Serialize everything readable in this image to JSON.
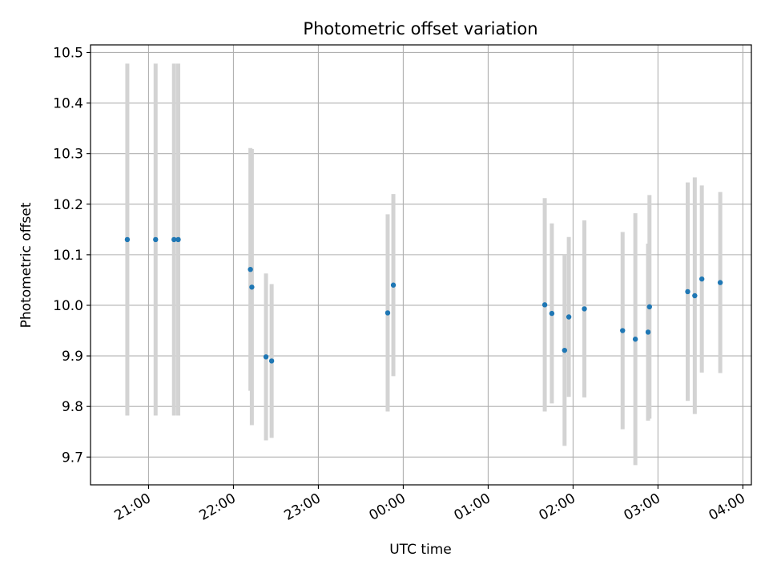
{
  "chart_data": {
    "type": "scatter",
    "title": "Photometric offset variation",
    "xlabel": "UTC time",
    "ylabel": "Photometric offset",
    "x_axis_kind": "time",
    "xlim": [
      "20:19",
      "04:06"
    ],
    "ylim": [
      9.645,
      10.515
    ],
    "y_ticks": [
      9.7,
      9.8,
      9.9,
      10.0,
      10.1,
      10.2,
      10.3,
      10.4,
      10.5
    ],
    "x_ticks": [
      "21:00",
      "22:00",
      "23:00",
      "00:00",
      "01:00",
      "02:00",
      "03:00",
      "04:00"
    ],
    "grid": true,
    "legend": "none",
    "colors": {
      "point": "#1f77b4",
      "errorbar": "#d3d3d3",
      "grid": "#b0b0b0"
    },
    "points": [
      {
        "x": "20:45",
        "y": 10.13,
        "err": 0.348
      },
      {
        "x": "21:05",
        "y": 10.13,
        "err": 0.348
      },
      {
        "x": "21:18",
        "y": 10.13,
        "err": 0.348
      },
      {
        "x": "21:21",
        "y": 10.13,
        "err": 0.348
      },
      {
        "x": "22:12",
        "y": 10.071,
        "err": 0.24
      },
      {
        "x": "22:13",
        "y": 10.036,
        "err": 0.273
      },
      {
        "x": "22:23",
        "y": 9.898,
        "err": 0.165
      },
      {
        "x": "22:27",
        "y": 9.89,
        "err": 0.152
      },
      {
        "x": "23:49",
        "y": 9.985,
        "err": 0.195
      },
      {
        "x": "23:53",
        "y": 10.04,
        "err": 0.18
      },
      {
        "x": "01:40",
        "y": 10.001,
        "err": 0.211
      },
      {
        "x": "01:45",
        "y": 9.984,
        "err": 0.178
      },
      {
        "x": "01:54",
        "y": 9.911,
        "err": 0.189
      },
      {
        "x": "01:57",
        "y": 9.977,
        "err": 0.158
      },
      {
        "x": "02:08",
        "y": 9.993,
        "err": 0.175
      },
      {
        "x": "02:35",
        "y": 9.95,
        "err": 0.195
      },
      {
        "x": "02:44",
        "y": 9.933,
        "err": 0.249
      },
      {
        "x": "02:53",
        "y": 9.947,
        "err": 0.175
      },
      {
        "x": "02:54",
        "y": 9.997,
        "err": 0.221
      },
      {
        "x": "03:21",
        "y": 10.027,
        "err": 0.216
      },
      {
        "x": "03:26",
        "y": 10.019,
        "err": 0.234
      },
      {
        "x": "03:31",
        "y": 10.052,
        "err": 0.185
      },
      {
        "x": "03:44",
        "y": 10.045,
        "err": 0.179
      }
    ]
  }
}
